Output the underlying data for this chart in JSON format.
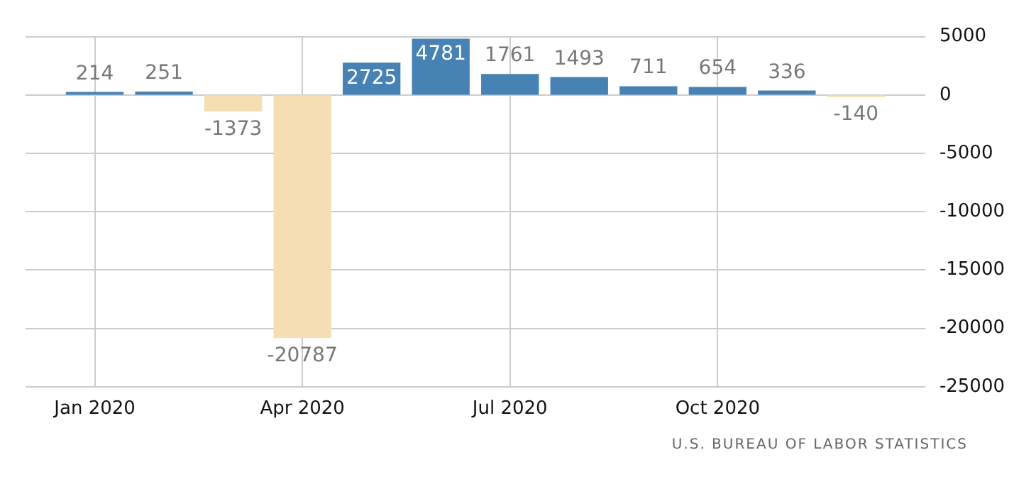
{
  "chart_data": {
    "type": "bar",
    "x": [
      "2020-01",
      "2020-02",
      "2020-03",
      "2020-04",
      "2020-05",
      "2020-06",
      "2020-07",
      "2020-08",
      "2020-09",
      "2020-10",
      "2020-11",
      "2020-12"
    ],
    "values": [
      214,
      251,
      -1373,
      -20787,
      2725,
      4781,
      1761,
      1493,
      711,
      654,
      336,
      -140
    ],
    "colors": [
      "#4682b4",
      "#4682b4",
      "#f5deb3",
      "#f5deb3",
      "#4682b4",
      "#4682b4",
      "#4682b4",
      "#4682b4",
      "#4682b4",
      "#4682b4",
      "#4682b4",
      "#f5deb3"
    ],
    "xlim": [
      "2019-12",
      "2021-01"
    ],
    "xticks": [
      {
        "value": "2020-01",
        "label": "Jan 2020"
      },
      {
        "value": "2020-04",
        "label": "Apr 2020"
      },
      {
        "value": "2020-07",
        "label": "Jul 2020"
      },
      {
        "value": "2020-10",
        "label": "Oct 2020"
      }
    ],
    "ylim": [
      -25000,
      5000
    ],
    "yticks": [
      -25000,
      -20000,
      -15000,
      -10000,
      -5000,
      0,
      5000
    ],
    "grid": true,
    "data_labels": true,
    "annotations": [
      "U.S. BUREAU OF LABOR STATISTICS"
    ]
  }
}
